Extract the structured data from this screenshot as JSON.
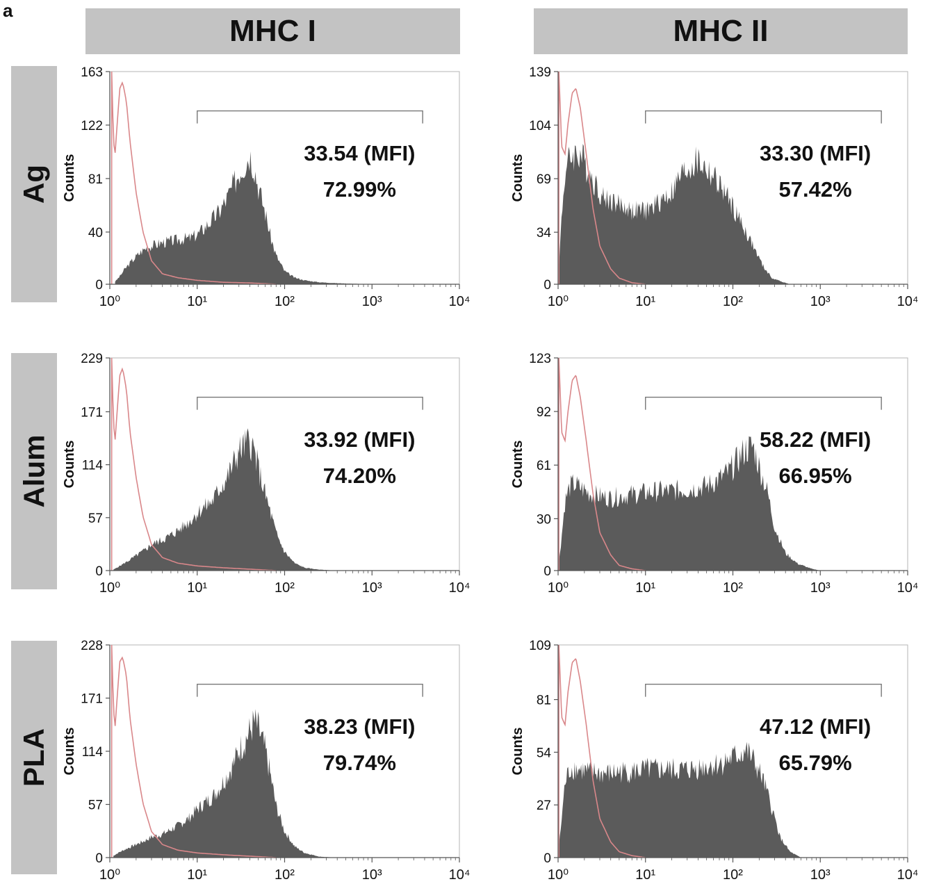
{
  "panel_letter": "a",
  "column_headers": [
    "MHC I",
    "MHC II"
  ],
  "row_headers": [
    "Ag",
    "Alum",
    "PLA"
  ],
  "colors": {
    "histogram_fill": "#5b5b5b",
    "control_line": "#d9878a",
    "header_bg": "#c3c3c3",
    "axis": "#555555"
  },
  "chart_data": [
    {
      "type": "area",
      "row": "Ag",
      "column": "MHC I",
      "ylabel": "Counts",
      "xscale": "log",
      "xlim": [
        1,
        10000
      ],
      "ylim": [
        0,
        163
      ],
      "yticks": [
        0,
        40,
        81,
        122,
        163
      ],
      "xticks": [
        "10⁰",
        "10¹",
        "10²",
        "10³",
        "10⁴"
      ],
      "gate": [
        10,
        3800
      ],
      "mfi_label": "33.54 (MFI)",
      "percent_label": "72.99%",
      "series": [
        {
          "role": "sample",
          "x": [
            1.15,
            1.3,
            1.5,
            1.8,
            2.2,
            2.6,
            3.2,
            4,
            5,
            6,
            7,
            8,
            10,
            12,
            15,
            18,
            22,
            26,
            30,
            35,
            40,
            45,
            50,
            60,
            70,
            80,
            100,
            130,
            170,
            250,
            400,
            700,
            1000
          ],
          "y": [
            2,
            6,
            12,
            18,
            24,
            28,
            30,
            32,
            33,
            34,
            35,
            35,
            38,
            43,
            50,
            56,
            66,
            76,
            86,
            93,
            100,
            90,
            75,
            55,
            35,
            22,
            10,
            5,
            3,
            1.5,
            0.8,
            0.3,
            0
          ]
        },
        {
          "role": "control",
          "x": [
            1.05,
            1.1,
            1.15,
            1.2,
            1.3,
            1.4,
            1.55,
            1.7,
            2,
            2.4,
            3,
            4,
            6,
            10,
            20,
            40,
            80
          ],
          "y": [
            163,
            110,
            100,
            118,
            150,
            155,
            140,
            110,
            70,
            40,
            18,
            8,
            5,
            3,
            1.5,
            1,
            0
          ]
        }
      ]
    },
    {
      "type": "area",
      "row": "Ag",
      "column": "MHC II",
      "ylabel": "Counts",
      "xscale": "log",
      "xlim": [
        1,
        10000
      ],
      "ylim": [
        0,
        139
      ],
      "yticks": [
        0,
        34,
        69,
        104,
        139
      ],
      "xticks": [
        "10⁰",
        "10¹",
        "10²",
        "10³",
        "10⁴"
      ],
      "gate": [
        10,
        5000
      ],
      "mfi_label": "33.30 (MFI)",
      "percent_label": "57.42%",
      "series": [
        {
          "role": "sample",
          "x": [
            1.02,
            1.1,
            1.2,
            1.35,
            1.5,
            1.8,
            2.2,
            2.7,
            3.2,
            4,
            5,
            6,
            7,
            8,
            10,
            12,
            15,
            20,
            25,
            30,
            35,
            40,
            50,
            60,
            80,
            100,
            130,
            170,
            220,
            280,
            350,
            450
          ],
          "y": [
            10,
            45,
            72,
            82,
            85,
            85,
            75,
            65,
            57,
            55,
            52,
            50,
            48,
            48,
            48,
            50,
            55,
            60,
            70,
            75,
            78,
            80,
            75,
            70,
            60,
            50,
            38,
            25,
            12,
            4,
            2,
            0
          ]
        },
        {
          "role": "control",
          "x": [
            1.02,
            1.1,
            1.2,
            1.3,
            1.45,
            1.6,
            1.8,
            2.1,
            2.5,
            3,
            4,
            5,
            7,
            10
          ],
          "y": [
            139,
            90,
            85,
            105,
            125,
            128,
            115,
            85,
            50,
            25,
            10,
            4,
            1,
            0
          ]
        }
      ]
    },
    {
      "type": "area",
      "row": "Alum",
      "column": "MHC I",
      "ylabel": "Counts",
      "xscale": "log",
      "xlim": [
        1,
        10000
      ],
      "ylim": [
        0,
        229
      ],
      "yticks": [
        0,
        57,
        114,
        171,
        229
      ],
      "xticks": [
        "10⁰",
        "10¹",
        "10²",
        "10³",
        "10⁴"
      ],
      "gate": [
        10,
        3800
      ],
      "mfi_label": "33.92 (MFI)",
      "percent_label": "74.20%",
      "series": [
        {
          "role": "sample",
          "x": [
            1.1,
            1.3,
            1.6,
            2,
            2.5,
            3,
            4,
            5,
            6,
            8,
            10,
            12,
            15,
            18,
            22,
            26,
            30,
            35,
            40,
            45,
            50,
            60,
            70,
            80,
            100,
            130,
            170,
            250,
            400
          ],
          "y": [
            1,
            5,
            10,
            16,
            22,
            28,
            33,
            38,
            43,
            52,
            62,
            68,
            75,
            88,
            100,
            115,
            128,
            135,
            140,
            128,
            110,
            82,
            60,
            40,
            20,
            8,
            3,
            1,
            0
          ]
        },
        {
          "role": "control",
          "x": [
            1.05,
            1.1,
            1.15,
            1.2,
            1.3,
            1.4,
            1.55,
            1.7,
            2,
            2.4,
            3,
            4,
            6,
            10,
            20,
            40,
            80
          ],
          "y": [
            229,
            160,
            140,
            165,
            210,
            218,
            195,
            150,
            100,
            58,
            28,
            14,
            8,
            5,
            3,
            1.5,
            0
          ]
        }
      ]
    },
    {
      "type": "area",
      "row": "Alum",
      "column": "MHC II",
      "ylabel": "Counts",
      "xscale": "log",
      "xlim": [
        1,
        10000
      ],
      "ylim": [
        0,
        123
      ],
      "yticks": [
        0,
        30,
        61,
        92,
        123
      ],
      "xticks": [
        "10⁰",
        "10¹",
        "10²",
        "10³",
        "10⁴"
      ],
      "gate": [
        10,
        5000
      ],
      "mfi_label": "58.22 (MFI)",
      "percent_label": "66.95%",
      "series": [
        {
          "role": "sample",
          "x": [
            1.02,
            1.1,
            1.2,
            1.35,
            1.5,
            1.8,
            2.2,
            3,
            4,
            5,
            7,
            10,
            15,
            20,
            30,
            40,
            50,
            70,
            90,
            110,
            140,
            170,
            200,
            250,
            300,
            400,
            550,
            800,
            1000
          ],
          "y": [
            5,
            20,
            40,
            48,
            50,
            48,
            45,
            43,
            42,
            43,
            44,
            45,
            46,
            46,
            47,
            48,
            49,
            53,
            57,
            63,
            70,
            72,
            60,
            45,
            25,
            10,
            4,
            1,
            0
          ]
        },
        {
          "role": "control",
          "x": [
            1.02,
            1.1,
            1.2,
            1.3,
            1.45,
            1.6,
            1.8,
            2.1,
            2.5,
            3,
            4,
            5,
            7,
            10
          ],
          "y": [
            123,
            80,
            75,
            92,
            110,
            113,
            100,
            75,
            45,
            22,
            9,
            3,
            1,
            0
          ]
        }
      ]
    },
    {
      "type": "area",
      "row": "PLA",
      "column": "MHC I",
      "ylabel": "Counts",
      "xscale": "log",
      "xlim": [
        1,
        10000
      ],
      "ylim": [
        0,
        228
      ],
      "yticks": [
        0,
        57,
        114,
        171,
        228
      ],
      "xticks": [
        "10⁰",
        "10¹",
        "10²",
        "10³",
        "10⁴"
      ],
      "gate": [
        10,
        3800
      ],
      "mfi_label": "38.23 (MFI)",
      "percent_label": "79.74%",
      "series": [
        {
          "role": "sample",
          "x": [
            1.1,
            1.3,
            1.6,
            2,
            2.5,
            3,
            4,
            5,
            6,
            8,
            10,
            12,
            15,
            18,
            22,
            26,
            30,
            35,
            40,
            45,
            50,
            60,
            70,
            80,
            100,
            130,
            170,
            250,
            400
          ],
          "y": [
            2,
            6,
            10,
            14,
            18,
            22,
            25,
            30,
            34,
            42,
            52,
            58,
            65,
            75,
            88,
            100,
            115,
            125,
            135,
            145,
            138,
            115,
            85,
            55,
            28,
            12,
            5,
            1,
            0
          ]
        },
        {
          "role": "control",
          "x": [
            1.05,
            1.1,
            1.15,
            1.2,
            1.3,
            1.4,
            1.55,
            1.7,
            2,
            2.4,
            3,
            4,
            6,
            10,
            20,
            40,
            80
          ],
          "y": [
            228,
            160,
            140,
            165,
            210,
            215,
            195,
            150,
            100,
            58,
            28,
            14,
            8,
            5,
            3,
            1.5,
            0
          ]
        }
      ]
    },
    {
      "type": "area",
      "row": "PLA",
      "column": "MHC II",
      "ylabel": "Counts",
      "xscale": "log",
      "xlim": [
        1,
        10000
      ],
      "ylim": [
        0,
        109
      ],
      "yticks": [
        0,
        27,
        54,
        81,
        109
      ],
      "xticks": [
        "10⁰",
        "10¹",
        "10²",
        "10³",
        "10⁴"
      ],
      "gate": [
        10,
        5000
      ],
      "mfi_label": "47.12 (MFI)",
      "percent_label": "65.79%",
      "series": [
        {
          "role": "sample",
          "x": [
            1.02,
            1.1,
            1.2,
            1.35,
            1.5,
            1.8,
            2.2,
            3,
            4,
            5,
            7,
            10,
            15,
            20,
            30,
            40,
            50,
            70,
            90,
            110,
            140,
            170,
            220,
            280,
            350,
            450,
            600
          ],
          "y": [
            5,
            20,
            38,
            45,
            46,
            45,
            44,
            43,
            43,
            44,
            44,
            45,
            45,
            45,
            45,
            46,
            47,
            48,
            50,
            52,
            55,
            50,
            40,
            25,
            10,
            3,
            0
          ]
        },
        {
          "role": "control",
          "x": [
            1.02,
            1.1,
            1.2,
            1.3,
            1.45,
            1.6,
            1.8,
            2.1,
            2.5,
            3,
            4,
            5,
            7,
            10
          ],
          "y": [
            109,
            72,
            68,
            85,
            100,
            102,
            90,
            68,
            40,
            20,
            8,
            3,
            1,
            0
          ]
        }
      ]
    }
  ]
}
